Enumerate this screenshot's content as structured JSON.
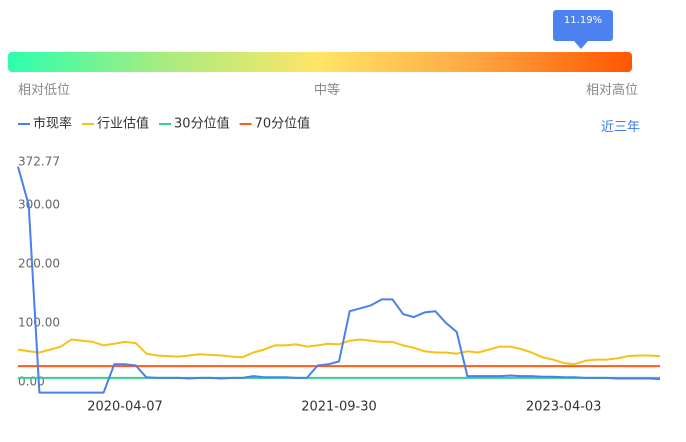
{
  "gauge": {
    "indicator": "11.19%",
    "labels": [
      "相对低位",
      "中等",
      "相对高位"
    ]
  },
  "period_button": "近三年",
  "chart_data": {
    "type": "line",
    "categories": [
      null,
      null,
      null,
      null,
      null,
      null,
      null,
      null,
      null,
      null,
      "2020-04-07",
      null,
      null,
      null,
      null,
      null,
      null,
      null,
      null,
      null,
      null,
      null,
      null,
      null,
      null,
      null,
      null,
      null,
      null,
      null,
      "2021-09-30",
      null,
      null,
      null,
      null,
      null,
      null,
      null,
      null,
      null,
      null,
      null,
      null,
      null,
      null,
      null,
      null,
      null,
      null,
      null,
      null,
      "2023-04-03",
      null,
      null,
      null,
      null,
      null,
      null,
      null,
      null,
      null
    ],
    "series": [
      {
        "name": "市现率",
        "color": "#4a7ff0",
        "values": [
          365,
          300,
          -18,
          -18,
          -18,
          -18,
          -18,
          -18,
          -18,
          30,
          30,
          28,
          8,
          7,
          7,
          7,
          6,
          7,
          7,
          6,
          7,
          7,
          10,
          8,
          8,
          8,
          7,
          7,
          28,
          30,
          35,
          120,
          125,
          130,
          140,
          140,
          115,
          110,
          118,
          120,
          100,
          85,
          10,
          10,
          10,
          10,
          11,
          10,
          10,
          9,
          9,
          8,
          8,
          7,
          7,
          7,
          6,
          6,
          6,
          6,
          5
        ]
      },
      {
        "name": "行业估值",
        "color": "#f5c218",
        "values": [
          55,
          52,
          50,
          55,
          60,
          72,
          70,
          68,
          62,
          65,
          68,
          66,
          48,
          45,
          44,
          43,
          45,
          47,
          46,
          45,
          43,
          42,
          50,
          55,
          62,
          62,
          64,
          60,
          62,
          65,
          64,
          70,
          72,
          70,
          68,
          68,
          62,
          58,
          52,
          50,
          50,
          48,
          52,
          50,
          55,
          60,
          60,
          56,
          50,
          42,
          38,
          32,
          30,
          36,
          38,
          38,
          40,
          44,
          45,
          45,
          44
        ]
      },
      {
        "name": "30分位值",
        "color": "#2fd38a",
        "values": [
          7,
          7,
          7,
          7,
          7,
          7,
          7,
          7,
          7,
          7,
          7,
          7,
          7,
          7,
          7,
          7,
          7,
          7,
          7,
          7,
          7,
          7,
          7,
          7,
          7,
          7,
          7,
          7,
          7,
          7,
          7,
          7,
          7,
          7,
          7,
          7,
          7,
          7,
          7,
          7,
          7,
          7,
          7,
          7,
          7,
          7,
          7,
          7,
          7,
          7,
          7,
          7,
          7,
          7,
          7,
          7,
          7,
          7,
          7,
          7,
          7
        ]
      },
      {
        "name": "70分位值",
        "color": "#ff5a1a",
        "values": [
          27,
          27,
          27,
          27,
          27,
          27,
          27,
          27,
          27,
          27,
          27,
          27,
          27,
          27,
          27,
          27,
          27,
          27,
          27,
          27,
          27,
          27,
          27,
          27,
          27,
          27,
          27,
          27,
          27,
          27,
          27,
          27,
          27,
          27,
          27,
          27,
          27,
          27,
          27,
          27,
          27,
          27,
          27,
          27,
          27,
          27,
          27,
          27,
          27,
          27,
          27,
          27,
          27,
          27,
          27,
          27,
          27,
          27,
          27,
          27,
          27
        ]
      }
    ],
    "ylim": [
      -22,
      375
    ],
    "yticks": [
      {
        "value": 0,
        "label": "0.00"
      },
      {
        "value": 100,
        "label": "100.00"
      },
      {
        "value": 200,
        "label": "200.00"
      },
      {
        "value": 300,
        "label": "300.00"
      },
      372.77
    ],
    "grid": false
  }
}
